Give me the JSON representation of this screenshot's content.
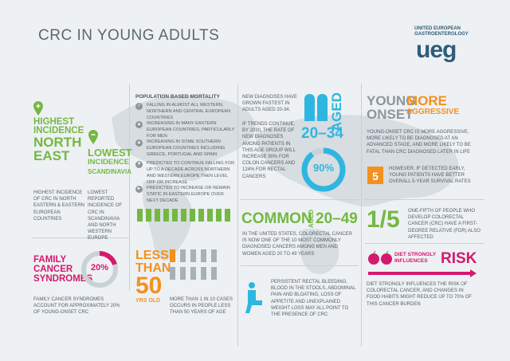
{
  "header": {
    "title": "CRC IN YOUNG ADULTS",
    "org_name": "UNITED EUROPEAN GASTROENTEROLOGY",
    "logo": "ueg"
  },
  "colors": {
    "green": "#74b843",
    "pink": "#d6186f",
    "orange": "#f3911f",
    "cyan": "#2fb6e0",
    "gray": "#8b979d"
  },
  "highest": {
    "title_line1": "HIGHEST",
    "title_line2": "INCIDENCE",
    "title_line3": "NORTH",
    "title_line4": "EAST",
    "text": "HIGHEST INCIDENCE OF CRC IN NORTH EASTERN & EASTERN EUROPEAN COUNTRIES"
  },
  "lowest": {
    "title_line1": "LOWEST",
    "title_line2": "INCIDENCE",
    "title_line3": "SCANDINAVIA",
    "text": "LOWEST REPORTED INCIDENCE OF CRC IN SCANDINAVIA AND NORTH WESTERN EUROPE"
  },
  "mortality": {
    "heading": "POPULATION BASED MORTALITY",
    "items": [
      "FALLING IN ALMOST ALL WESTERN, NORTHERN AND CENTRAL EUROPEAN COUNTRIES",
      "INCREASING IN MANY EASTERN EUROPEAN COUNTRIES, PARTICULARLY FOR MEN",
      "INCREASING IN SOME SOUTHERN EUROPEAN COUNTRIES INCLUDING GREECE, PORTUGAL AND SPAIN",
      "PREDICTED TO CONTINUE FALLING FOR UP TO A DECADE ACROSS NORTHERN AND WESTERN EUROPE THEN LEVEL OFF OR INCREASE",
      "PREDICTED TO INCREASE OR REMAIN STATIC IN EASTERN EUROPE OVER NEXT DECADE"
    ]
  },
  "diagnoses": {
    "text1": "NEW DIAGNOSES HAVE GROWN FASTEST IN ADULTS AGED 20-34.",
    "text2": "IF TRENDS CONTINUE, BY 2030, THE RATE OF NEW DIAGNOSES AMONG PATIENTS IN THIS AGE GROUP WILL INCREASE 90% FOR COLON CANCERS AND 124% FOR RECTAL CANCERS",
    "aged_label": "AGED",
    "age_range": "20–34",
    "percent": "90%",
    "percent_value": 0.9
  },
  "young_onset": {
    "title_a1": "YOUNG",
    "title_a2": "ONSET",
    "title_b1": "MORE",
    "title_b2": "AGGRESSIVE",
    "text": "YOUNG-ONSET CRC IS MORE AGGRESSIVE, MORE LIKELY TO BE DIAGNOSED AT AN ADVANCED STAGE, AND MORE LIKELY TO BE FATAL THAN CRC DIAGNOSED LATER IN LIFE",
    "number": "5",
    "survival_text": "HOWEVER, IF DETECTED EARLY, YOUNG PATIENTS HAVE BETTER OVERALL 5-YEAR SURVIVAL RATES"
  },
  "common": {
    "word": "COMMON",
    "aged_label": "AGED",
    "range": "20–49",
    "text": "IN THE UNITED STATES, COLORECTAL CANCER IS NOW ONE OF THE 10 MOST COMMONLY DIAGNOSED CANCERS AMONG MEN AND WOMEN AGED 20 TO 49 YEARS"
  },
  "fdr": {
    "fraction": "1/5",
    "text": "ONE-FIFTH OF PEOPLE WHO DEVELOP COLORECTAL CANCER (CRC) HAVE A FIRST-DEGREE RELATIVE (FDR) ALSO AFFECTED"
  },
  "family": {
    "title_line1": "FAMILY",
    "title_line2": "CANCER",
    "title_line3": "SYNDROMES",
    "percent": "20%",
    "percent_value": 0.2,
    "text": "FAMILY CANCER SYNDROMES ACCOUNT FOR APPROXIMATELY 20% OF YOUNG-ONSET CRC"
  },
  "less_than_50": {
    "line1": "LESS",
    "line2": "THAN",
    "number": "50",
    "line3": "YRS OLD",
    "text": "MORE THAN 1 IN 10 CASES OCCURS IN PEOPLE LESS THAN 50 YEARS OF AGE"
  },
  "symptoms": {
    "text": "PERSISTENT RECTAL BLEEDING, BLOOD IN THE STOOLS, ABDOMINAL PAIN AND BLOATING, LOSS OF APPETITE AND UNEXPLAINED WEIGHT LOSS MAY ALL POINT TO THE PRESENCE OF CRC"
  },
  "diet": {
    "label1": "DIET STRONGLY",
    "label2": "INFLUENCES",
    "risk": "RISK",
    "text": "DIET STRONGLY INFLUENCES THE RISK OF COLORECTAL CANCER, AND CHANGES IN FOOD HABITS MIGHT REDUCE UP TO 70% OF THIS CANCER BURDEN"
  }
}
